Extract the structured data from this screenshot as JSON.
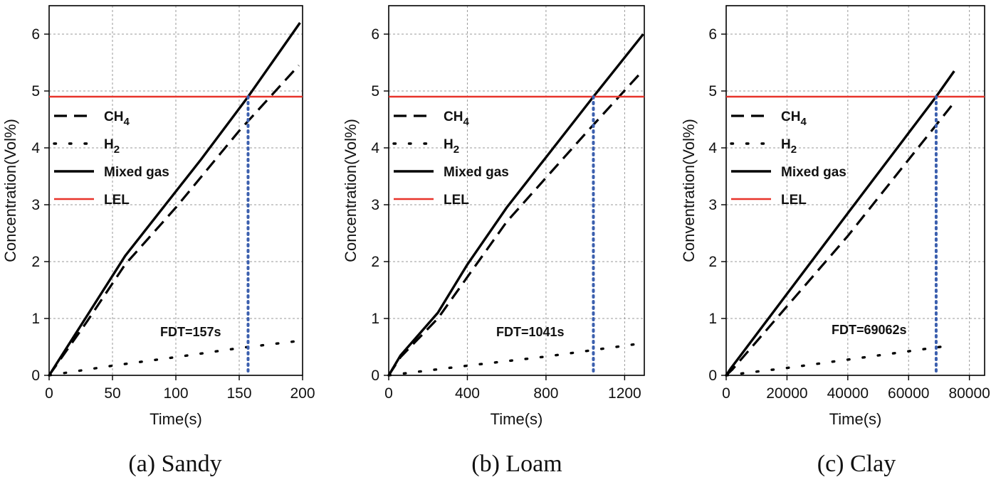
{
  "chart_data": [
    {
      "type": "line",
      "caption": "(a) Sandy",
      "xlabel": "Time(s)",
      "ylabel": "Concentration(Vol%)",
      "xlim": [
        0,
        200
      ],
      "ylim": [
        0,
        6.5
      ],
      "xticks": [
        0,
        50,
        100,
        150,
        200
      ],
      "yticks": [
        0,
        1,
        2,
        3,
        4,
        5,
        6
      ],
      "xtick_labels": [
        "0",
        "50",
        "100",
        "150",
        "200"
      ],
      "ytick_labels": [
        "0",
        "1",
        "2",
        "3",
        "4",
        "5",
        "6"
      ],
      "grid": true,
      "legend_position": "left",
      "lel": 4.9,
      "fdt_x": 157,
      "fdt_label": "FDT=157s",
      "series": [
        {
          "name": "CH4",
          "style": "dashed",
          "color": "#000000",
          "x": [
            0,
            30,
            60,
            100,
            150,
            197
          ],
          "y": [
            0,
            0.95,
            1.95,
            2.95,
            4.3,
            5.45
          ]
        },
        {
          "name": "H2",
          "style": "dotted",
          "color": "#000000",
          "x": [
            0,
            50,
            100,
            150,
            195
          ],
          "y": [
            0,
            0.17,
            0.32,
            0.48,
            0.6
          ]
        },
        {
          "name": "Mixed gas",
          "style": "solid",
          "color": "#000000",
          "x": [
            0,
            30,
            60,
            120,
            157,
            198
          ],
          "y": [
            0,
            1.05,
            2.1,
            3.8,
            4.9,
            6.2
          ]
        },
        {
          "name": "LEL",
          "style": "solid",
          "color": "#e8332a",
          "x": [
            0,
            200
          ],
          "y": [
            4.9,
            4.9
          ]
        }
      ]
    },
    {
      "type": "line",
      "caption": "(b) Loam",
      "xlabel": "Time(s)",
      "ylabel": "Concentration(Vol%)",
      "xlim": [
        0,
        1300
      ],
      "ylim": [
        0,
        6.5
      ],
      "xticks": [
        0,
        400,
        800,
        1200
      ],
      "yticks": [
        0,
        1,
        2,
        3,
        4,
        5,
        6
      ],
      "xtick_labels": [
        "0",
        "400",
        "800",
        "1200"
      ],
      "ytick_labels": [
        "0",
        "1",
        "2",
        "3",
        "4",
        "5",
        "6"
      ],
      "grid": true,
      "legend_position": "left",
      "lel": 4.9,
      "fdt_x": 1041,
      "fdt_label": "FDT=1041s",
      "series": [
        {
          "name": "CH4",
          "style": "dashed",
          "color": "#000000",
          "x": [
            0,
            60,
            250,
            600,
            1000,
            1290
          ],
          "y": [
            0,
            0.32,
            1.0,
            2.7,
            4.25,
            5.35
          ]
        },
        {
          "name": "H2",
          "style": "dotted",
          "color": "#000000",
          "x": [
            0,
            400,
            800,
            1260
          ],
          "y": [
            0,
            0.17,
            0.33,
            0.55
          ]
        },
        {
          "name": "Mixed gas",
          "style": "solid",
          "color": "#000000",
          "x": [
            0,
            60,
            250,
            400,
            600,
            1041,
            1295
          ],
          "y": [
            0,
            0.35,
            1.1,
            1.95,
            2.95,
            4.9,
            6.0
          ]
        },
        {
          "name": "LEL",
          "style": "solid",
          "color": "#e8332a",
          "x": [
            0,
            1300
          ],
          "y": [
            4.9,
            4.9
          ]
        }
      ]
    },
    {
      "type": "line",
      "caption": "(c) Clay",
      "xlabel": "Time(s)",
      "ylabel": "Conventration(Vol%)",
      "xlim": [
        0,
        85000
      ],
      "ylim": [
        0,
        6.5
      ],
      "xticks": [
        0,
        20000,
        40000,
        60000,
        80000
      ],
      "yticks": [
        0,
        1,
        2,
        3,
        4,
        5,
        6
      ],
      "xtick_labels": [
        "0",
        "20000",
        "40000",
        "60000",
        "80000"
      ],
      "ytick_labels": [
        "0",
        "1",
        "2",
        "3",
        "4",
        "5",
        "6"
      ],
      "grid": true,
      "legend_position": "left",
      "lel": 4.9,
      "fdt_x": 69062,
      "fdt_label": "FDT=69062s",
      "series": [
        {
          "name": "CH4",
          "style": "dashed",
          "color": "#000000",
          "x": [
            0,
            2000,
            40000,
            75000
          ],
          "y": [
            0,
            0.1,
            2.45,
            4.8
          ]
        },
        {
          "name": "H2",
          "style": "dotted",
          "color": "#000000",
          "x": [
            0,
            20000,
            50000,
            73000
          ],
          "y": [
            0,
            0.13,
            0.35,
            0.52
          ]
        },
        {
          "name": "Mixed gas",
          "style": "solid",
          "color": "#000000",
          "x": [
            0,
            1500,
            40000,
            69062,
            75000
          ],
          "y": [
            0,
            0.12,
            2.85,
            4.9,
            5.35
          ]
        },
        {
          "name": "LEL",
          "style": "solid",
          "color": "#e8332a",
          "x": [
            0,
            85000
          ],
          "y": [
            4.9,
            4.9
          ]
        }
      ]
    }
  ],
  "colors": {
    "fdt_marker": "#3b5fae",
    "lel": "#e8332a",
    "grid": "#9a9a9a"
  }
}
